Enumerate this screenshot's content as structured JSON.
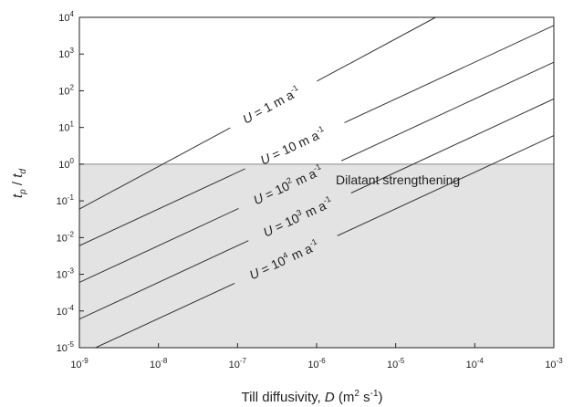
{
  "chart_data": {
    "type": "line",
    "x_scale": "log",
    "y_scale": "log",
    "xlim": [
      1e-09,
      0.001
    ],
    "ylim": [
      1e-05,
      10000.0
    ],
    "grid": false,
    "legend": "none",
    "xlabel": {
      "prefix": "Till diffusivity, ",
      "var": "D",
      "units_open": " (m",
      "units_sup1": "2",
      "units_mid": " s",
      "units_sup2": "-1",
      "units_close": ")"
    },
    "ylabel": {
      "t1": "t",
      "sub1": "p",
      "slash": " / ",
      "t2": "t",
      "sub2": "d"
    },
    "x_ticks": [
      {
        "base": "10",
        "exp": "-9"
      },
      {
        "base": "10",
        "exp": "-8"
      },
      {
        "base": "10",
        "exp": "-7"
      },
      {
        "base": "10",
        "exp": "-6"
      },
      {
        "base": "10",
        "exp": "-5"
      },
      {
        "base": "10",
        "exp": "-4"
      },
      {
        "base": "10",
        "exp": "-3"
      }
    ],
    "y_ticks": [
      {
        "base": "10",
        "exp": "-5"
      },
      {
        "base": "10",
        "exp": "-4"
      },
      {
        "base": "10",
        "exp": "-3"
      },
      {
        "base": "10",
        "exp": "-2"
      },
      {
        "base": "10",
        "exp": "-1"
      },
      {
        "base": "10",
        "exp": "0"
      },
      {
        "base": "10",
        "exp": "1"
      },
      {
        "base": "10",
        "exp": "2"
      },
      {
        "base": "10",
        "exp": "3"
      },
      {
        "base": "10",
        "exp": "4"
      }
    ],
    "shaded_region": {
      "y_from": 1e-05,
      "y_to": 1,
      "color": "#e3e3e3",
      "label": "Dilatant strengthening"
    },
    "threshold_line": {
      "y": 1
    },
    "series": [
      {
        "label_pre": "U",
        "label_eq": " = ",
        "label_num": "1",
        "label_sup_base": "",
        "label_unit": " m a",
        "label_unit_sup": "-1",
        "x": [
          1e-09,
          3.2e-05
        ],
        "y": [
          0.06,
          10000.0
        ]
      },
      {
        "label_pre": "U",
        "label_eq": " = ",
        "label_num": "10",
        "label_sup_base": "",
        "label_unit": " m a",
        "label_unit_sup": "-1",
        "x": [
          1e-09,
          0.001
        ],
        "y": [
          0.006,
          6000
        ]
      },
      {
        "label_pre": "U",
        "label_eq": " = ",
        "label_num": "10",
        "label_sup_base": "2",
        "label_unit": " m a",
        "label_unit_sup": "-1",
        "x": [
          1e-09,
          0.001
        ],
        "y": [
          0.0006,
          600
        ]
      },
      {
        "label_pre": "U",
        "label_eq": " = ",
        "label_num": "10",
        "label_sup_base": "3",
        "label_unit": " m a",
        "label_unit_sup": "-1",
        "x": [
          1e-09,
          0.001
        ],
        "y": [
          6e-05,
          60
        ]
      },
      {
        "label_pre": "U",
        "label_eq": " = ",
        "label_num": "10",
        "label_sup_base": "4",
        "label_unit": " m a",
        "label_unit_sup": "-1",
        "x": [
          1.6e-09,
          0.001
        ],
        "y": [
          1e-05,
          6
        ]
      }
    ],
    "colors": {
      "line": "#333333",
      "shade": "#e3e3e3",
      "axis": "#222222"
    }
  }
}
